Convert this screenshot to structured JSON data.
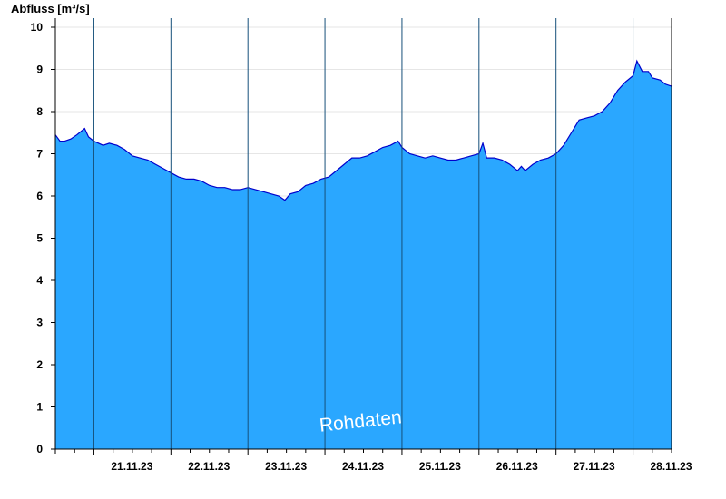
{
  "chart_data": {
    "type": "area",
    "ylabel": "Abfluss [m³/s]",
    "ylim": [
      0,
      10
    ],
    "yticks": [
      0,
      1,
      2,
      3,
      4,
      5,
      6,
      7,
      8,
      9,
      10
    ],
    "xlim_days": [
      20.5,
      28.5
    ],
    "xtick_labels": [
      "21.11.23",
      "22.11.23",
      "23.11.23",
      "24.11.23",
      "25.11.23",
      "26.11.23",
      "27.11.23",
      "28.11.23"
    ],
    "grid": "horizontal",
    "fill_color": "#2aa7ff",
    "line_color": "#0000cc",
    "watermark": "Rohdaten",
    "series": [
      {
        "points": [
          [
            20.5,
            7.45
          ],
          [
            20.56,
            7.3
          ],
          [
            20.62,
            7.3
          ],
          [
            20.7,
            7.35
          ],
          [
            20.78,
            7.45
          ],
          [
            20.88,
            7.6
          ],
          [
            20.93,
            7.4
          ],
          [
            21.0,
            7.3
          ],
          [
            21.12,
            7.2
          ],
          [
            21.2,
            7.25
          ],
          [
            21.3,
            7.2
          ],
          [
            21.4,
            7.1
          ],
          [
            21.5,
            6.95
          ],
          [
            21.6,
            6.9
          ],
          [
            21.7,
            6.85
          ],
          [
            21.8,
            6.75
          ],
          [
            21.9,
            6.65
          ],
          [
            22.0,
            6.55
          ],
          [
            22.1,
            6.45
          ],
          [
            22.2,
            6.4
          ],
          [
            22.3,
            6.4
          ],
          [
            22.4,
            6.35
          ],
          [
            22.5,
            6.25
          ],
          [
            22.6,
            6.2
          ],
          [
            22.7,
            6.2
          ],
          [
            22.8,
            6.15
          ],
          [
            22.9,
            6.15
          ],
          [
            23.0,
            6.2
          ],
          [
            23.1,
            6.15
          ],
          [
            23.2,
            6.1
          ],
          [
            23.3,
            6.05
          ],
          [
            23.4,
            6.0
          ],
          [
            23.48,
            5.9
          ],
          [
            23.55,
            6.05
          ],
          [
            23.65,
            6.1
          ],
          [
            23.75,
            6.25
          ],
          [
            23.85,
            6.3
          ],
          [
            23.95,
            6.4
          ],
          [
            24.05,
            6.45
          ],
          [
            24.15,
            6.6
          ],
          [
            24.25,
            6.75
          ],
          [
            24.35,
            6.9
          ],
          [
            24.45,
            6.9
          ],
          [
            24.55,
            6.95
          ],
          [
            24.65,
            7.05
          ],
          [
            24.75,
            7.15
          ],
          [
            24.85,
            7.2
          ],
          [
            24.95,
            7.3
          ],
          [
            25.0,
            7.15
          ],
          [
            25.1,
            7.0
          ],
          [
            25.2,
            6.95
          ],
          [
            25.3,
            6.9
          ],
          [
            25.4,
            6.95
          ],
          [
            25.5,
            6.9
          ],
          [
            25.6,
            6.85
          ],
          [
            25.7,
            6.85
          ],
          [
            25.8,
            6.9
          ],
          [
            25.9,
            6.95
          ],
          [
            26.0,
            7.0
          ],
          [
            26.05,
            7.25
          ],
          [
            26.1,
            6.9
          ],
          [
            26.2,
            6.9
          ],
          [
            26.3,
            6.85
          ],
          [
            26.4,
            6.75
          ],
          [
            26.5,
            6.6
          ],
          [
            26.55,
            6.7
          ],
          [
            26.6,
            6.6
          ],
          [
            26.7,
            6.75
          ],
          [
            26.8,
            6.85
          ],
          [
            26.9,
            6.9
          ],
          [
            27.0,
            7.0
          ],
          [
            27.1,
            7.2
          ],
          [
            27.2,
            7.5
          ],
          [
            27.3,
            7.8
          ],
          [
            27.4,
            7.85
          ],
          [
            27.5,
            7.9
          ],
          [
            27.6,
            8.0
          ],
          [
            27.7,
            8.2
          ],
          [
            27.8,
            8.5
          ],
          [
            27.9,
            8.7
          ],
          [
            28.0,
            8.85
          ],
          [
            28.05,
            9.2
          ],
          [
            28.12,
            8.95
          ],
          [
            28.2,
            8.95
          ],
          [
            28.25,
            8.8
          ],
          [
            28.35,
            8.75
          ],
          [
            28.42,
            8.65
          ],
          [
            28.5,
            8.6
          ]
        ]
      }
    ]
  }
}
